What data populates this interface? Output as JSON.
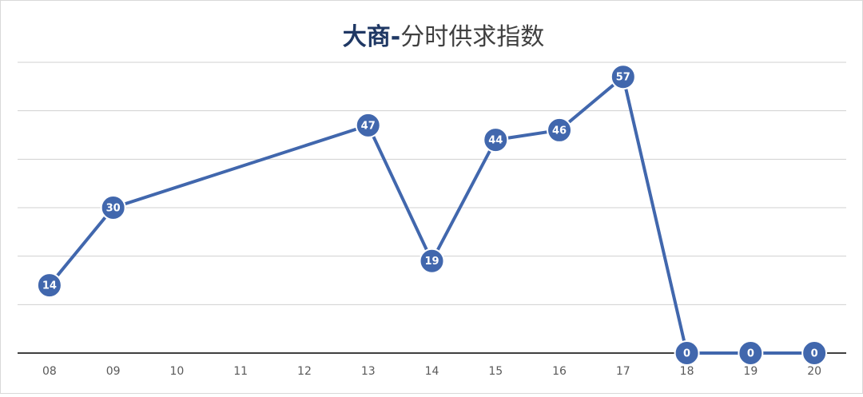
{
  "chart_data": {
    "type": "line",
    "title_brand": "大商-",
    "title": "分时供求指数",
    "categories": [
      "08",
      "09",
      "10",
      "11",
      "12",
      "13",
      "14",
      "15",
      "16",
      "17",
      "18",
      "19",
      "20"
    ],
    "values": [
      14,
      30,
      null,
      null,
      null,
      47,
      19,
      44,
      46,
      57,
      0,
      0,
      0
    ],
    "color": "#4167ad",
    "span_gaps": true,
    "ylim": [
      0,
      60
    ],
    "yticks": [
      0,
      10,
      20,
      30,
      40,
      50,
      60
    ],
    "grid": true
  }
}
